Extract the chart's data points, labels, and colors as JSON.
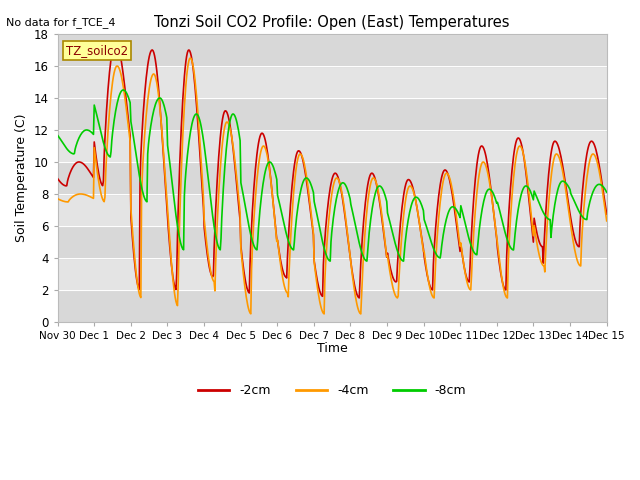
{
  "title": "Tonzi Soil CO2 Profile: Open (East) Temperatures",
  "ylabel": "Soil Temperature (C)",
  "xlabel": "Time",
  "no_data_text": "No data for f_TCE_4",
  "legend_label": "TZ_soilco2",
  "ylim": [
    0,
    18
  ],
  "background_color": "#ffffff",
  "plot_bg_color": "#e8e8e8",
  "line_colors": {
    "2cm": "#cc0000",
    "4cm": "#ff9900",
    "8cm": "#00cc00"
  },
  "legend_entries": [
    "-2cm",
    "-4cm",
    "-8cm"
  ],
  "tick_labels": [
    "Nov 30",
    "Dec 1",
    "Dec 2",
    "Dec 3",
    "Dec 4",
    "Dec 5",
    "Dec 6",
    "Dec 7",
    "Dec 8",
    "Dec 9",
    "Dec 10",
    "Dec 11",
    "Dec 12",
    "Dec 13",
    "Dec 14",
    "Dec 15"
  ],
  "label_box_color": "#ffff99",
  "label_box_edge": "#aa8800",
  "band_colors": [
    "#e0e0e0",
    "#d4d4d4"
  ]
}
